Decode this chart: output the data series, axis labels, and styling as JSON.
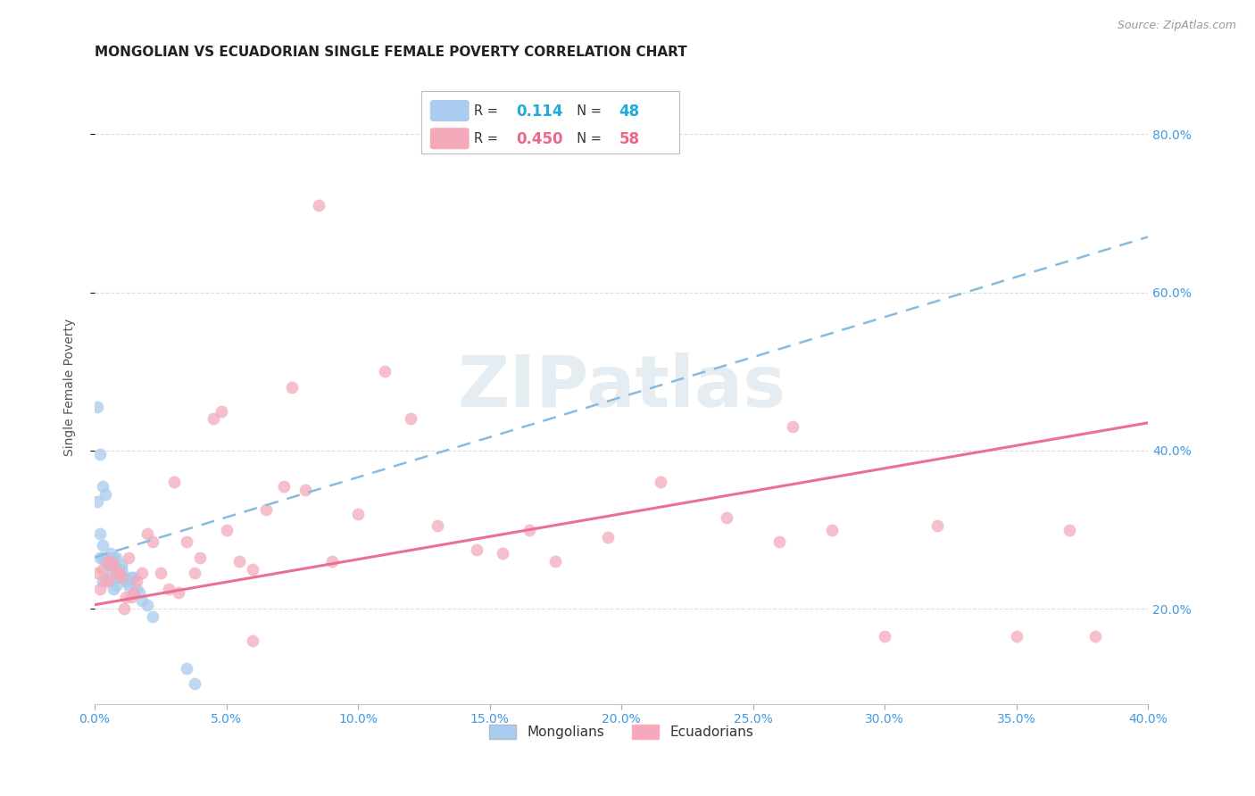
{
  "title": "MONGOLIAN VS ECUADORIAN SINGLE FEMALE POVERTY CORRELATION CHART",
  "source": "Source: ZipAtlas.com",
  "ylabel": "Single Female Poverty",
  "xlim": [
    0.0,
    0.4
  ],
  "ylim": [
    0.08,
    0.88
  ],
  "mongolian_R": "0.114",
  "mongolian_N": "48",
  "ecuadorian_R": "0.450",
  "ecuadorian_N": "58",
  "mongolian_line_color": "#88bbdd",
  "ecuadorian_line_color": "#e87090",
  "mongolian_scatter_color": "#aaccee",
  "ecuadorian_scatter_color": "#f4aabb",
  "legend_R_color": "#22aadd",
  "legend_R2_color": "#ee6688",
  "background_color": "#ffffff",
  "grid_color": "#dddddd",
  "title_fontsize": 11,
  "label_fontsize": 10,
  "tick_fontsize": 10,
  "watermark": "ZIPatlas",
  "watermark_color": "#ccdde8",
  "mongo_line_x0": 0.0,
  "mongo_line_y0": 0.265,
  "mongo_line_x1": 0.4,
  "mongo_line_y1": 0.67,
  "ecua_line_x0": 0.0,
  "ecua_line_y0": 0.205,
  "ecua_line_x1": 0.4,
  "ecua_line_y1": 0.435
}
